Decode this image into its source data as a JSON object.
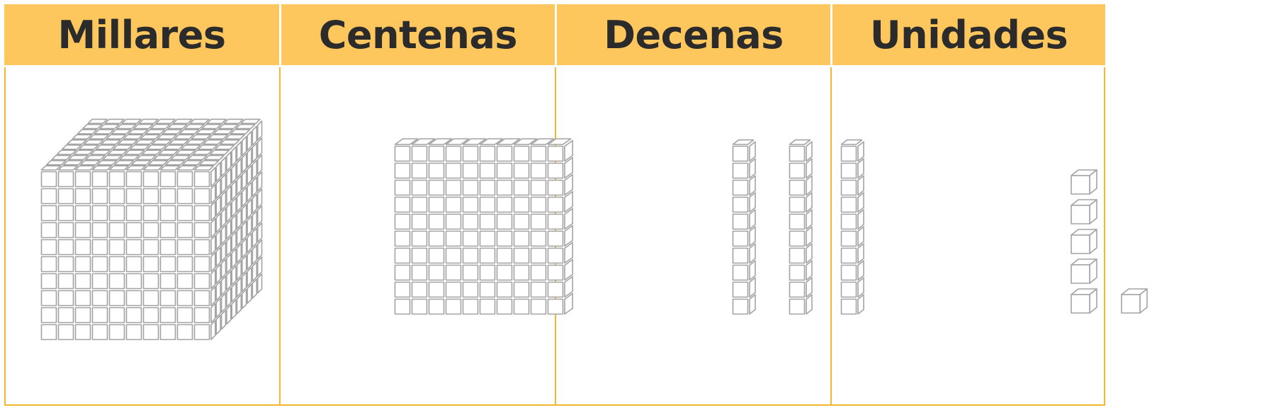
{
  "colors": {
    "header": "#fdc75e",
    "border": "#f2b630",
    "stroke": "#a3a3a3",
    "text": "#2b2b2b"
  },
  "columns": [
    {
      "id": "millares",
      "header": "Millares",
      "quantity": 1,
      "block": "thousand-cube"
    },
    {
      "id": "centenas",
      "header": "Centenas",
      "quantity": 1,
      "block": "hundred-flat"
    },
    {
      "id": "decenas",
      "header": "Decenas",
      "quantity": 3,
      "block": "ten-rod"
    },
    {
      "id": "unidades",
      "header": "Unidades",
      "quantity": 6,
      "block": "unit-cube"
    }
  ]
}
